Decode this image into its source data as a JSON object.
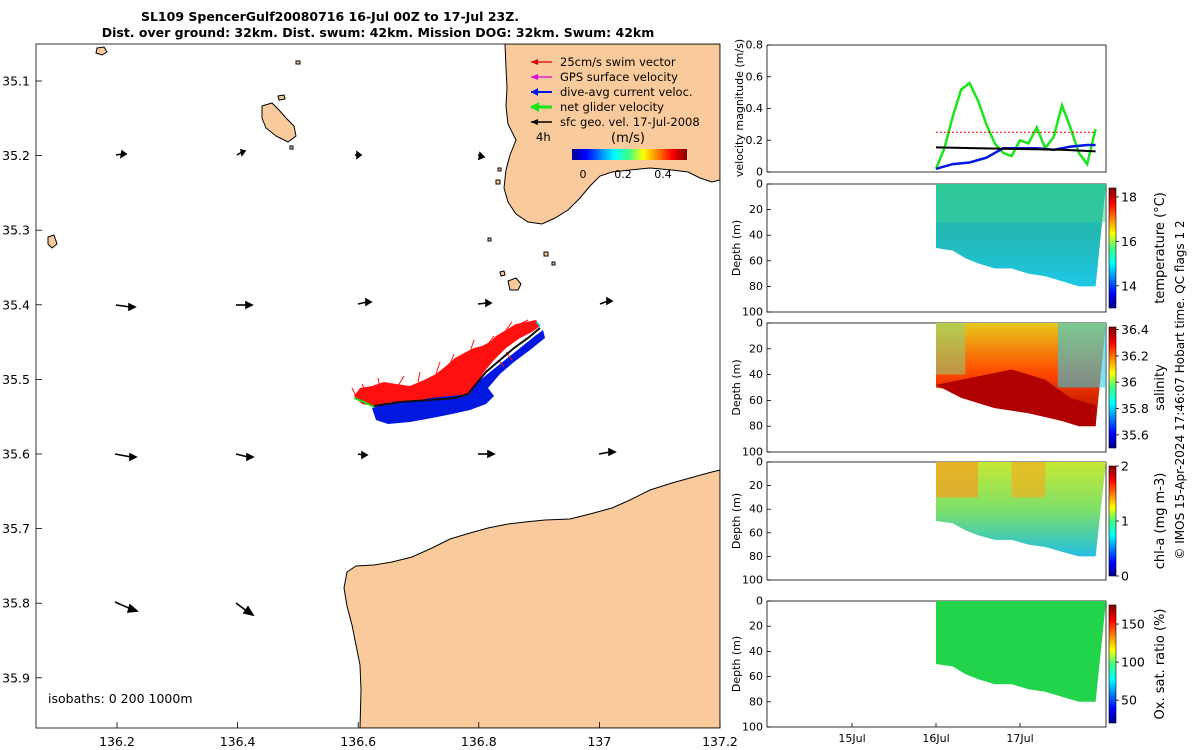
{
  "title": {
    "line1": "SL109 SpencerGulf20080716 16-Jul 00Z to 17-Jul 23Z.",
    "line2": "Dist. over ground: 32km. Dist. swum: 42km. Mission DOG: 32km. Swum: 42km"
  },
  "map": {
    "legend": [
      {
        "label": "25cm/s swim vector",
        "color": "#e00000"
      },
      {
        "label": "GPS surface velocity",
        "color": "#e000e0"
      },
      {
        "label": "dive-avg current veloc.",
        "color": "#0018e0"
      },
      {
        "label": "net glider velocity",
        "color": "#19e619"
      },
      {
        "label": "sfc geo. vel. 17-Jul-2008",
        "color": "#000000"
      }
    ],
    "colorbar_title": "(m/s)",
    "colorbar_ticks": [
      "0",
      "0.2",
      "0.4"
    ],
    "label_4h": "4h",
    "isobaths_label": "isobaths: 0   200  1000m",
    "lat_ticks": [
      "35.1",
      "35.2",
      "35.3",
      "35.4",
      "35.5",
      "35.6",
      "35.7",
      "35.8",
      "35.9"
    ],
    "lon_ticks": [
      "136.2",
      "136.4",
      "136.6",
      "136.8",
      "137",
      "137.2"
    ],
    "land_color": "#f9cb9c"
  },
  "side": {
    "velocity_ylabel": "velocity magnitude (m/s)",
    "depth_label": "Depth (m)",
    "x_ticks": [
      "15Jul",
      "16Jul",
      "17Jul"
    ],
    "footer_vertical": "© IMOS 15-Apr-2024 17:46:07 Hobart time. QC flags 1  2"
  },
  "chart_data": [
    {
      "type": "line",
      "title": "",
      "xlabel": "",
      "ylabel": "velocity magnitude (m/s)",
      "ylim": [
        0,
        0.8
      ],
      "yticks": [
        0,
        0.2,
        0.4,
        0.6,
        0.8
      ],
      "series": [
        {
          "name": "net glider velocity",
          "color": "#19e619",
          "x": [
            16.0,
            16.1,
            16.2,
            16.3,
            16.4,
            16.5,
            16.6,
            16.7,
            16.8,
            16.9,
            17.0,
            17.1,
            17.2,
            17.3,
            17.4,
            17.5,
            17.6,
            17.7,
            17.8,
            17.9
          ],
          "values": [
            0.02,
            0.15,
            0.35,
            0.52,
            0.56,
            0.45,
            0.3,
            0.18,
            0.12,
            0.1,
            0.2,
            0.18,
            0.28,
            0.15,
            0.22,
            0.42,
            0.28,
            0.12,
            0.05,
            0.27
          ]
        },
        {
          "name": "dive-avg current veloc.",
          "color": "#0018e0",
          "x": [
            16.0,
            16.2,
            16.4,
            16.6,
            16.8,
            17.0,
            17.2,
            17.4,
            17.6,
            17.8,
            17.9
          ],
          "values": [
            0.02,
            0.05,
            0.06,
            0.09,
            0.15,
            0.15,
            0.15,
            0.14,
            0.16,
            0.17,
            0.17
          ]
        },
        {
          "name": "sfc geo. vel.",
          "color": "#000000",
          "x": [
            16.0,
            16.5,
            17.0,
            17.5,
            17.9
          ],
          "values": [
            0.155,
            0.15,
            0.145,
            0.14,
            0.13
          ]
        },
        {
          "name": "25cm/s swim vector",
          "color": "#e00000",
          "x": [
            16.0,
            17.9
          ],
          "values": [
            0.25,
            0.25
          ]
        }
      ]
    },
    {
      "type": "heatmap",
      "title": "",
      "ylabel": "Depth (m)",
      "colorbar_label": "temperature (°C)",
      "ylim": [
        100,
        0
      ],
      "yticks": [
        0,
        20,
        40,
        60,
        80,
        100
      ],
      "clim": [
        13,
        18.4
      ],
      "cticks": [
        14,
        16,
        18
      ]
    },
    {
      "type": "heatmap",
      "title": "",
      "ylabel": "Depth (m)",
      "colorbar_label": "salinity",
      "ylim": [
        100,
        0
      ],
      "yticks": [
        0,
        20,
        40,
        60,
        80,
        100
      ],
      "clim": [
        35.5,
        36.42
      ],
      "cticks": [
        35.6,
        35.8,
        36,
        36.2,
        36.4
      ]
    },
    {
      "type": "heatmap",
      "title": "",
      "ylabel": "Depth (m)",
      "colorbar_label": "chl-a (mg m-3)",
      "ylim": [
        100,
        0
      ],
      "yticks": [
        0,
        20,
        40,
        60,
        80,
        100
      ],
      "clim": [
        0,
        2
      ],
      "cticks": [
        0,
        1,
        2
      ]
    },
    {
      "type": "heatmap",
      "title": "",
      "ylabel": "Depth (m)",
      "colorbar_label": "Ox. sat. ratio (%)",
      "ylim": [
        100,
        0
      ],
      "yticks": [
        0,
        20,
        40,
        60,
        80,
        100
      ],
      "clim": [
        20,
        175
      ],
      "cticks": [
        50,
        100,
        150
      ]
    }
  ]
}
